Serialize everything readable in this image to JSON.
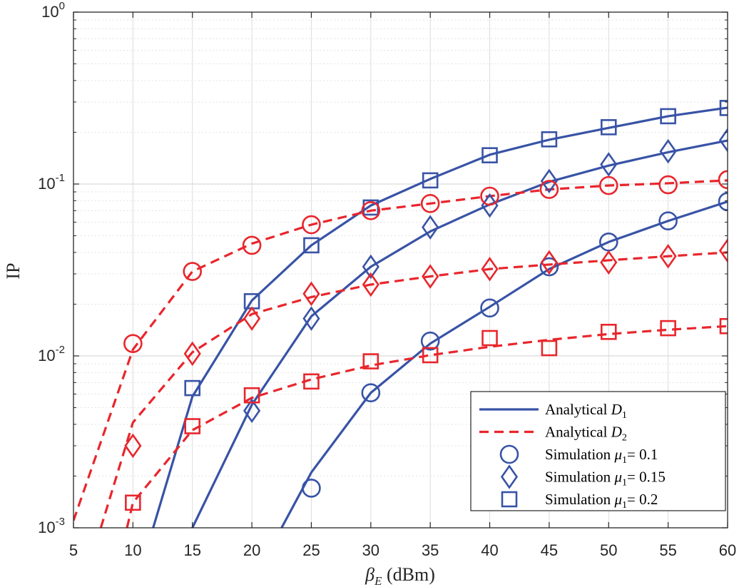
{
  "chart_data": {
    "type": "line",
    "title": "",
    "xlabel": {
      "symbol": "β",
      "subscript": "E",
      "unit": "(dBm)"
    },
    "ylabel": "IP",
    "xlim": [
      5,
      60
    ],
    "ylim": [
      0.001,
      1
    ],
    "yscale": "log",
    "grid": true,
    "x_ticks": [
      5,
      10,
      15,
      20,
      25,
      30,
      35,
      40,
      45,
      50,
      55,
      60
    ],
    "y_ticks": [
      {
        "value": 0.001,
        "base": "10",
        "exp": "-3"
      },
      {
        "value": 0.01,
        "base": "10",
        "exp": "-2"
      },
      {
        "value": 0.1,
        "base": "10",
        "exp": "-1"
      },
      {
        "value": 1,
        "base": "10",
        "exp": "0"
      }
    ],
    "colors": {
      "D1": "#3853a6",
      "D2": "#e8262c",
      "axis": "#262626",
      "grid": "#dcdcdc"
    },
    "legend_position": "bottom-right",
    "legend": [
      {
        "kind": "line",
        "series": "D1",
        "text": "Analytical ",
        "var": "D",
        "sub": "1",
        "suffix": ""
      },
      {
        "kind": "line",
        "series": "D2",
        "text": "Analytical ",
        "var": "D",
        "sub": "2",
        "suffix": ""
      },
      {
        "kind": "marker",
        "marker": "circle",
        "text": "Simulation ",
        "var": "μ",
        "sub": "1",
        "suffix": "= 0.1"
      },
      {
        "kind": "marker",
        "marker": "diamond",
        "text": "Simulation ",
        "var": "μ",
        "sub": "1",
        "suffix": "= 0.15"
      },
      {
        "kind": "marker",
        "marker": "square",
        "text": "Simulation ",
        "var": "μ",
        "sub": "1",
        "suffix": "= 0.2"
      }
    ],
    "analytical": [
      {
        "name": "Analytical D1, μ1=0.1",
        "group": "D1",
        "mu1": 0.1,
        "x": [
          22.5,
          25,
          30,
          35,
          40,
          45,
          50,
          55,
          60
        ],
        "y": [
          0.001,
          0.0021,
          0.0061,
          0.0118,
          0.0193,
          0.032,
          0.046,
          0.061,
          0.079
        ]
      },
      {
        "name": "Analytical D1, μ1=0.15",
        "group": "D1",
        "mu1": 0.15,
        "x": [
          15,
          20,
          25,
          30,
          35,
          40,
          45,
          50,
          55,
          60
        ],
        "y": [
          0.001,
          0.0052,
          0.017,
          0.033,
          0.053,
          0.076,
          0.103,
          0.128,
          0.153,
          0.179
        ]
      },
      {
        "name": "Analytical D1, μ1=0.2",
        "group": "D1",
        "mu1": 0.2,
        "x": [
          11.7,
          15,
          20,
          25,
          30,
          35,
          40,
          45,
          50,
          55,
          60
        ],
        "y": [
          0.001,
          0.0058,
          0.021,
          0.044,
          0.075,
          0.107,
          0.148,
          0.181,
          0.212,
          0.248,
          0.278
        ]
      },
      {
        "name": "Analytical D2, μ1=0.1",
        "group": "D2",
        "mu1": 0.1,
        "x": [
          5,
          10,
          15,
          20,
          25,
          30,
          35,
          40,
          45,
          50,
          55,
          60
        ],
        "y": [
          0.0011,
          0.0109,
          0.031,
          0.045,
          0.058,
          0.07,
          0.077,
          0.085,
          0.093,
          0.098,
          0.101,
          0.105
        ]
      },
      {
        "name": "Analytical D2, μ1=0.15",
        "group": "D2",
        "mu1": 0.15,
        "x": [
          7.3,
          10,
          15,
          20,
          25,
          30,
          35,
          40,
          45,
          50,
          55,
          60
        ],
        "y": [
          0.001,
          0.0041,
          0.0105,
          0.0175,
          0.022,
          0.026,
          0.029,
          0.032,
          0.034,
          0.036,
          0.038,
          0.04
        ]
      },
      {
        "name": "Analytical D2, μ1=0.2",
        "group": "D2",
        "mu1": 0.2,
        "x": [
          9.5,
          10,
          15,
          20,
          25,
          30,
          35,
          40,
          45,
          50,
          55,
          60
        ],
        "y": [
          0.001,
          0.0014,
          0.0037,
          0.0057,
          0.0073,
          0.0088,
          0.0101,
          0.0113,
          0.0124,
          0.0134,
          0.0142,
          0.0149
        ]
      }
    ],
    "simulation": [
      {
        "name": "Sim D1 μ1=0.1",
        "group": "D1",
        "marker": "circle",
        "x": [
          25,
          30,
          35,
          40,
          45,
          50,
          55,
          60
        ],
        "y": [
          0.0017,
          0.0061,
          0.0122,
          0.019,
          0.033,
          0.046,
          0.061,
          0.079
        ]
      },
      {
        "name": "Sim D1 μ1=0.15",
        "group": "D1",
        "marker": "diamond",
        "x": [
          20,
          25,
          30,
          35,
          40,
          45,
          50,
          55,
          60
        ],
        "y": [
          0.0048,
          0.0165,
          0.033,
          0.056,
          0.075,
          0.104,
          0.13,
          0.155,
          0.18
        ]
      },
      {
        "name": "Sim D1 μ1=0.2",
        "group": "D1",
        "marker": "square",
        "x": [
          15,
          20,
          25,
          30,
          35,
          40,
          45,
          50,
          55,
          60
        ],
        "y": [
          0.0065,
          0.0208,
          0.044,
          0.073,
          0.105,
          0.147,
          0.182,
          0.214,
          0.248,
          0.277
        ]
      },
      {
        "name": "Sim D2 μ1=0.1",
        "group": "D2",
        "marker": "circle",
        "x": [
          10,
          15,
          20,
          25,
          30,
          35,
          40,
          45,
          50,
          55,
          60
        ],
        "y": [
          0.0118,
          0.031,
          0.044,
          0.058,
          0.07,
          0.077,
          0.085,
          0.093,
          0.098,
          0.099,
          0.106
        ]
      },
      {
        "name": "Sim D2 μ1=0.15",
        "group": "D2",
        "marker": "diamond",
        "x": [
          10,
          15,
          20,
          25,
          30,
          35,
          40,
          45,
          50,
          55,
          60
        ],
        "y": [
          0.003,
          0.0103,
          0.0165,
          0.023,
          0.026,
          0.029,
          0.032,
          0.035,
          0.035,
          0.038,
          0.041
        ]
      },
      {
        "name": "Sim D2 μ1=0.2",
        "group": "D2",
        "marker": "square",
        "x": [
          10,
          15,
          20,
          25,
          30,
          35,
          40,
          45,
          50,
          55,
          60
        ],
        "y": [
          0.0014,
          0.0039,
          0.0059,
          0.0071,
          0.0093,
          0.0101,
          0.0127,
          0.0111,
          0.0138,
          0.0145,
          0.0149
        ]
      }
    ]
  }
}
